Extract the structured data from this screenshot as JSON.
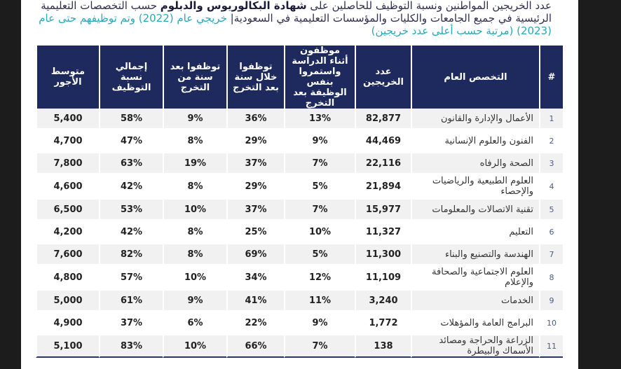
{
  "intro": {
    "part1": "عدد الخريجين المواطنين ونسبة التوظيف للحاصلين على ",
    "bold": "شهادة البكالوريوس والدبلوم",
    "part2": " حسب التخصصات التعليمية الرئيسية في جميع الجامعات والكليات والمؤسسات التعليمية في السعودية| ",
    "highlight": "خريجي عام (2022) وتم توظيفهم حتى عام (2023) (مرتبة حسب أعلى عدد خريجين)"
  },
  "table": {
    "headers": [
      "#",
      "التخصص العام",
      "عدد الخريجين",
      "موظفون أثناء الدراسة واستمروا بنفس الوظيفة بعد التخرج",
      "توظفوا خلال سنة بعد التخرج",
      "توظفوا بعد سنة من التخرج",
      "إجمالي نسبة التوظيف",
      "متوسط الأجور"
    ],
    "rows": [
      {
        "num": "1",
        "spec": "الأعمال والإدارة والقانون",
        "grads": "82,877",
        "during": "13%",
        "within": "36%",
        "after": "9%",
        "total": "58%",
        "wage": "5,400"
      },
      {
        "num": "2",
        "spec": "الفنون والعلوم الإنسانية",
        "grads": "44,469",
        "during": "9%",
        "within": "29%",
        "after": "8%",
        "total": "47%",
        "wage": "4,700"
      },
      {
        "num": "3",
        "spec": "الصحة والرفاه",
        "grads": "22,116",
        "during": "7%",
        "within": "37%",
        "after": "19%",
        "total": "63%",
        "wage": "7,800"
      },
      {
        "num": "4",
        "spec": "العلوم الطبيعية والرياضيات والإحصاء",
        "grads": "21,894",
        "during": "5%",
        "within": "29%",
        "after": "8%",
        "total": "42%",
        "wage": "4,600"
      },
      {
        "num": "5",
        "spec": "تقنية الاتصالات والمعلومات",
        "grads": "15,977",
        "during": "7%",
        "within": "37%",
        "after": "10%",
        "total": "53%",
        "wage": "6,500"
      },
      {
        "num": "6",
        "spec": "التعليم",
        "grads": "11,327",
        "during": "10%",
        "within": "25%",
        "after": "8%",
        "total": "42%",
        "wage": "4,200"
      },
      {
        "num": "7",
        "spec": "الهندسة والتصنيع والبناء",
        "grads": "11,300",
        "during": "5%",
        "within": "69%",
        "after": "8%",
        "total": "82%",
        "wage": "7,600"
      },
      {
        "num": "8",
        "spec": "العلوم الاجتماعية والصحافة والإعلام",
        "grads": "11,109",
        "during": "12%",
        "within": "34%",
        "after": "10%",
        "total": "57%",
        "wage": "4,800"
      },
      {
        "num": "9",
        "spec": "الخدمات",
        "grads": "3,240",
        "during": "11%",
        "within": "41%",
        "after": "9%",
        "total": "61%",
        "wage": "5,000"
      },
      {
        "num": "10",
        "spec": "البرامج العامة والمؤهلات",
        "grads": "1,772",
        "during": "9%",
        "within": "22%",
        "after": "6%",
        "total": "37%",
        "wage": "4,900"
      },
      {
        "num": "11",
        "spec": "الزراعة والحراجة ومصائد الأسماك والبيطرة",
        "grads": "138",
        "during": "7%",
        "within": "66%",
        "after": "10%",
        "total": "83%",
        "wage": "5,100"
      }
    ]
  }
}
